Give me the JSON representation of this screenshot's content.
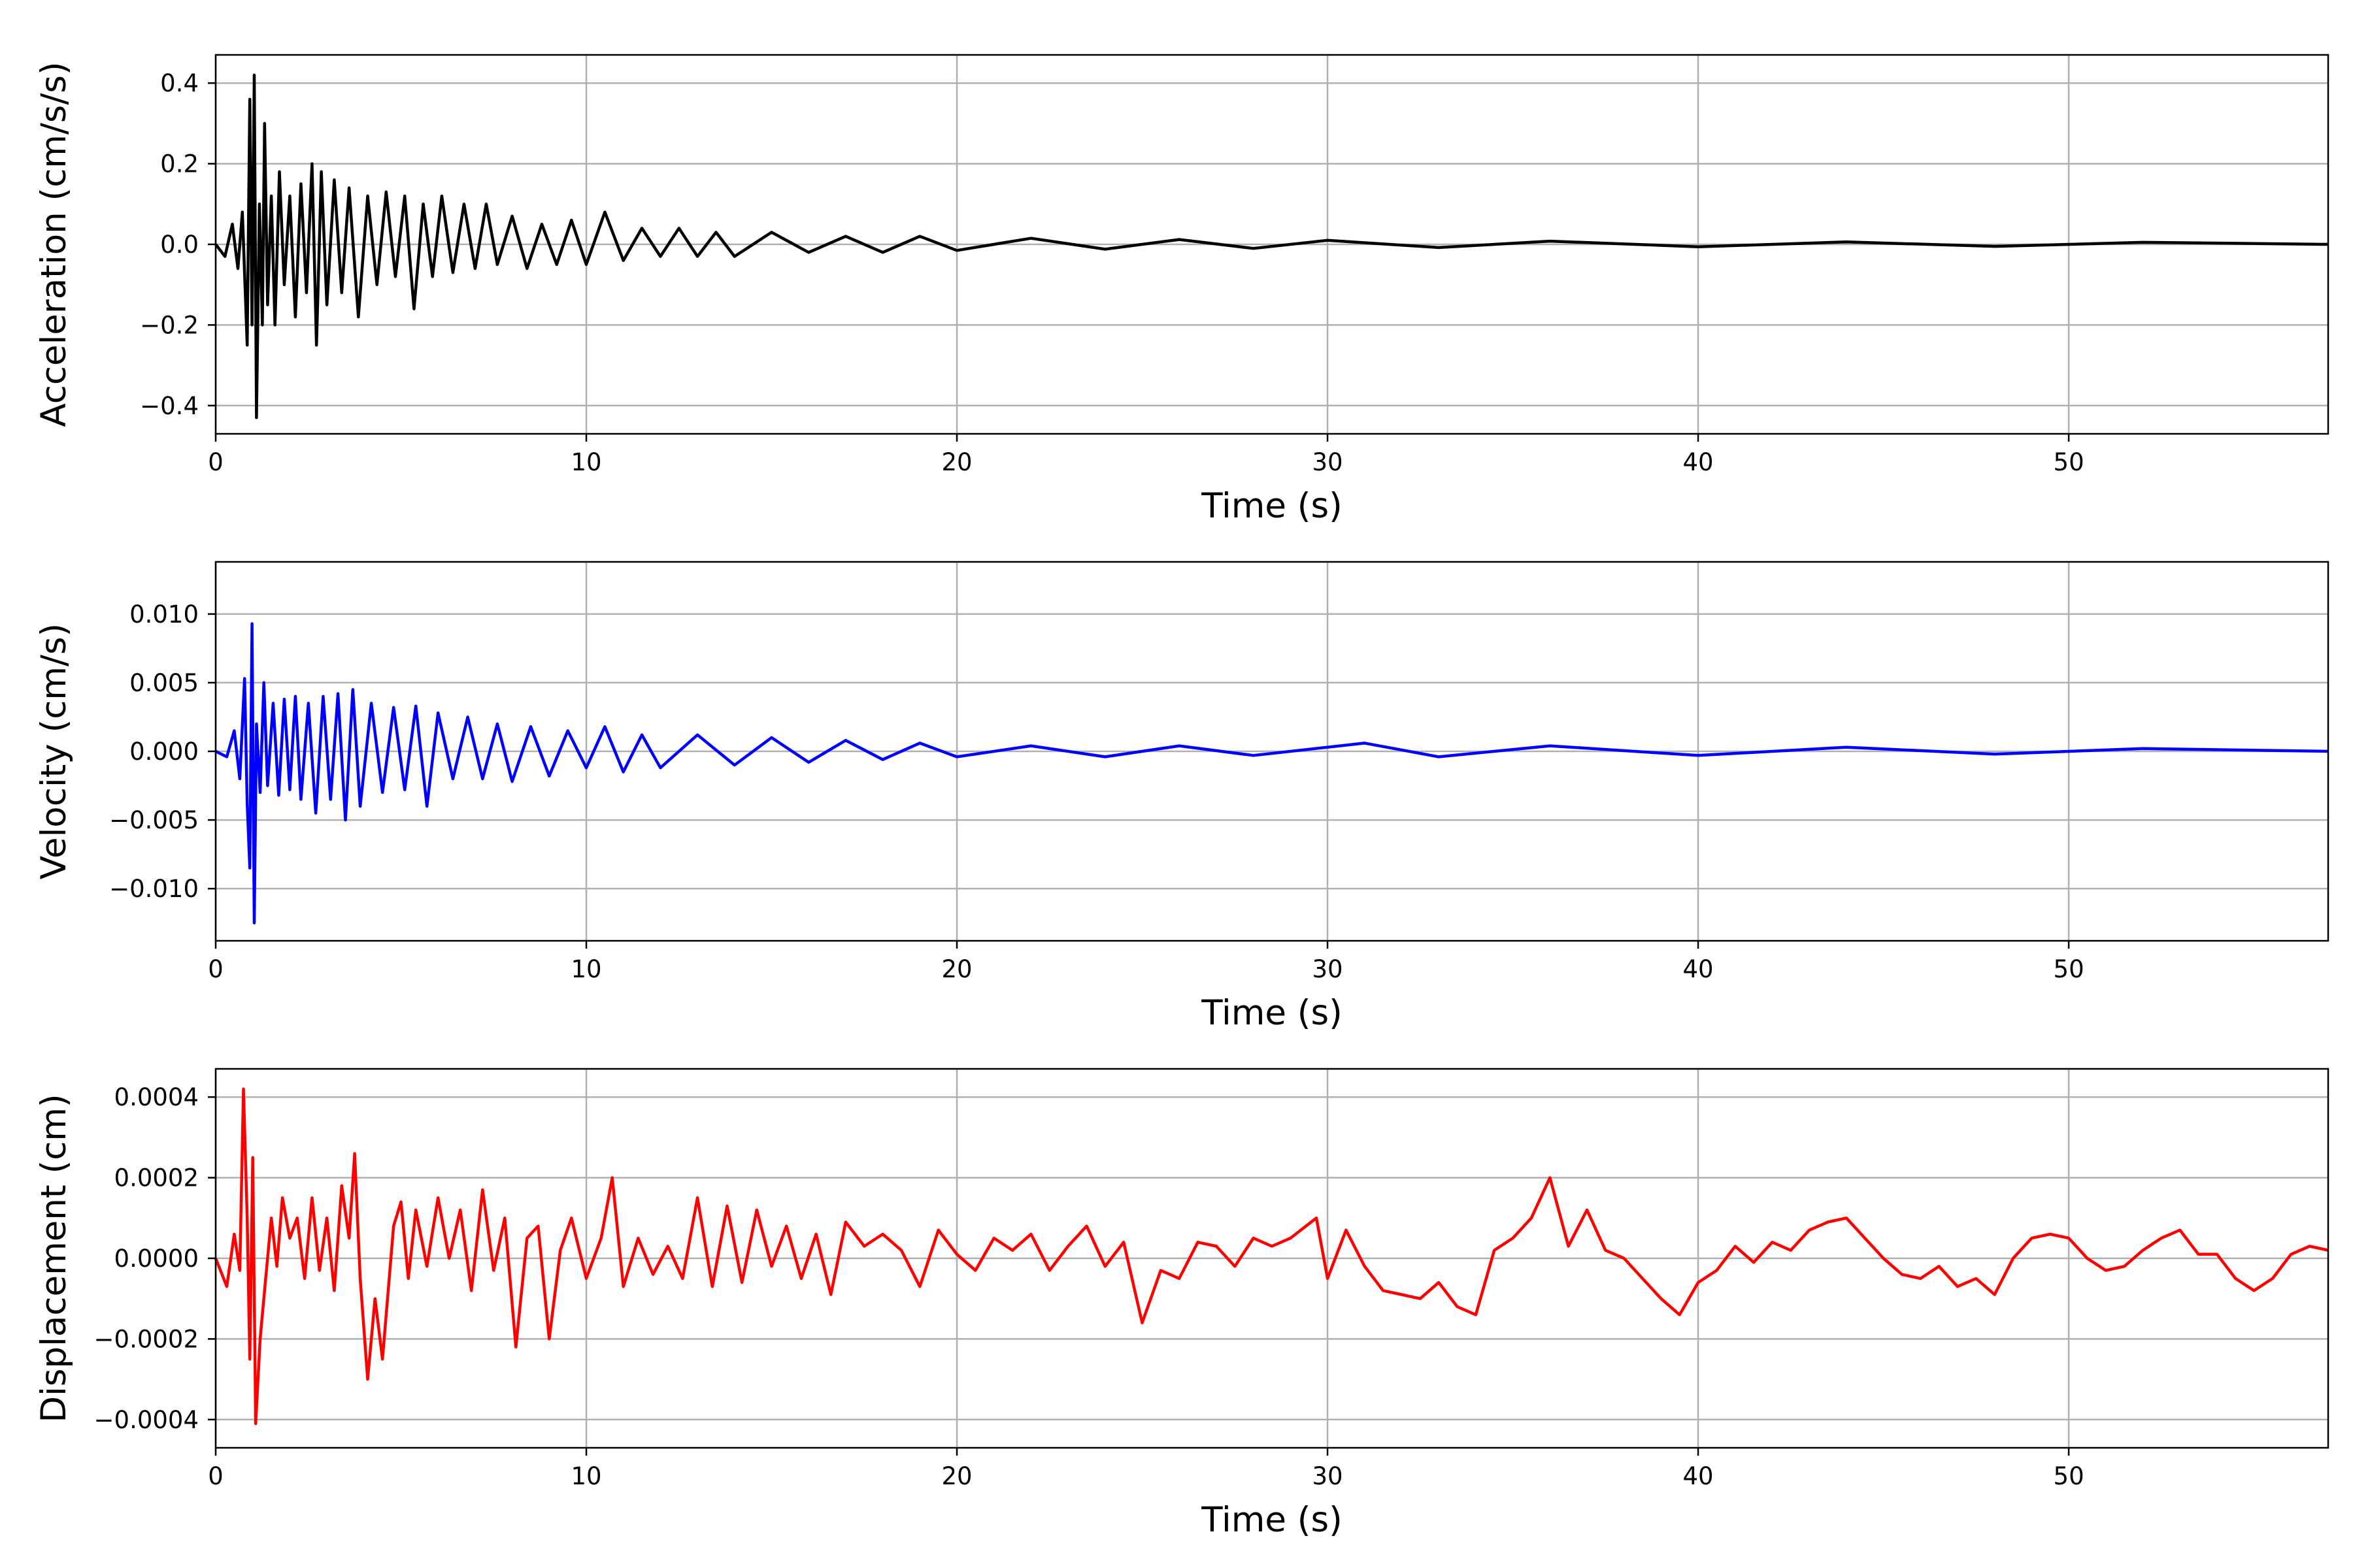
{
  "chart_data": [
    {
      "type": "line",
      "xlabel": "Time (s)",
      "ylabel": "Acceleration (cm/s/s)",
      "xlim": [
        0,
        57
      ],
      "ylim": [
        -0.47,
        0.47
      ],
      "xticks": [
        0,
        10,
        20,
        30,
        40,
        50
      ],
      "xtick_labels": [
        "0",
        "10",
        "20",
        "30",
        "40",
        "50"
      ],
      "yticks": [
        -0.4,
        -0.2,
        0.0,
        0.2,
        0.4
      ],
      "ytick_labels": [
        "−0.4",
        "−0.2",
        "0.0",
        "0.2",
        "0.4"
      ],
      "grid": true,
      "series": [
        {
          "color": "#000000",
          "x": [
            0,
            0.25,
            0.45,
            0.6,
            0.72,
            0.85,
            0.92,
            0.98,
            1.04,
            1.1,
            1.18,
            1.26,
            1.32,
            1.4,
            1.5,
            1.6,
            1.72,
            1.85,
            2.0,
            2.15,
            2.3,
            2.45,
            2.6,
            2.72,
            2.85,
            3.0,
            3.2,
            3.4,
            3.6,
            3.85,
            4.1,
            4.35,
            4.6,
            4.85,
            5.1,
            5.35,
            5.6,
            5.85,
            6.1,
            6.4,
            6.7,
            7.0,
            7.3,
            7.6,
            8.0,
            8.4,
            8.8,
            9.2,
            9.6,
            10.0,
            10.5,
            11.0,
            11.5,
            12.0,
            12.5,
            13.0,
            13.5,
            14.0,
            15.0,
            16.0,
            17.0,
            18.0,
            19.0,
            20.0,
            22.0,
            24.0,
            26.0,
            28.0,
            30.0,
            33.0,
            36.0,
            40.0,
            44.0,
            48.0,
            52.0,
            57.0
          ],
          "y": [
            0.0,
            -0.03,
            0.05,
            -0.06,
            0.08,
            -0.25,
            0.36,
            -0.2,
            0.42,
            -0.43,
            0.1,
            -0.2,
            0.3,
            -0.15,
            0.12,
            -0.2,
            0.18,
            -0.1,
            0.12,
            -0.18,
            0.15,
            -0.12,
            0.2,
            -0.25,
            0.18,
            -0.15,
            0.16,
            -0.12,
            0.14,
            -0.18,
            0.12,
            -0.1,
            0.13,
            -0.08,
            0.12,
            -0.16,
            0.1,
            -0.08,
            0.12,
            -0.07,
            0.1,
            -0.06,
            0.1,
            -0.05,
            0.07,
            -0.06,
            0.05,
            -0.05,
            0.06,
            -0.05,
            0.08,
            -0.04,
            0.04,
            -0.03,
            0.04,
            -0.03,
            0.03,
            -0.03,
            0.03,
            -0.02,
            0.02,
            -0.02,
            0.02,
            -0.015,
            0.015,
            -0.012,
            0.012,
            -0.01,
            0.01,
            -0.008,
            0.008,
            -0.006,
            0.006,
            -0.005,
            0.005,
            0.0
          ]
        }
      ]
    },
    {
      "type": "line",
      "xlabel": "Time (s)",
      "ylabel": "Velocity (cm/s)",
      "xlim": [
        0,
        57
      ],
      "ylim": [
        -0.0138,
        0.0138
      ],
      "xticks": [
        0,
        10,
        20,
        30,
        40,
        50
      ],
      "xtick_labels": [
        "0",
        "10",
        "20",
        "30",
        "40",
        "50"
      ],
      "yticks": [
        -0.01,
        -0.005,
        0.0,
        0.005,
        0.01
      ],
      "ytick_labels": [
        "−0.010",
        "−0.005",
        "0.000",
        "0.005",
        "0.010"
      ],
      "grid": true,
      "series": [
        {
          "color": "#0000ff",
          "x": [
            0,
            0.3,
            0.5,
            0.65,
            0.78,
            0.85,
            0.92,
            0.98,
            1.04,
            1.1,
            1.2,
            1.3,
            1.4,
            1.55,
            1.7,
            1.85,
            2.0,
            2.15,
            2.3,
            2.5,
            2.7,
            2.9,
            3.1,
            3.3,
            3.5,
            3.7,
            3.9,
            4.2,
            4.5,
            4.8,
            5.1,
            5.4,
            5.7,
            6.0,
            6.4,
            6.8,
            7.2,
            7.6,
            8.0,
            8.5,
            9.0,
            9.5,
            10.0,
            10.5,
            11.0,
            11.5,
            12.0,
            13.0,
            14.0,
            15.0,
            16.0,
            17.0,
            18.0,
            19.0,
            20.0,
            22.0,
            24.0,
            26.0,
            28.0,
            30.0,
            31.0,
            33.0,
            36.0,
            40.0,
            44.0,
            48.0,
            52.0,
            57.0
          ],
          "y": [
            0.0,
            -0.0004,
            0.0015,
            -0.002,
            0.0053,
            -0.0038,
            -0.0085,
            0.0093,
            -0.0125,
            0.002,
            -0.003,
            0.005,
            -0.0025,
            0.0035,
            -0.0032,
            0.0038,
            -0.0028,
            0.004,
            -0.0035,
            0.0035,
            -0.0045,
            0.004,
            -0.0035,
            0.0042,
            -0.005,
            0.0045,
            -0.004,
            0.0035,
            -0.003,
            0.0032,
            -0.0028,
            0.0033,
            -0.004,
            0.0028,
            -0.002,
            0.0025,
            -0.002,
            0.002,
            -0.0022,
            0.0018,
            -0.0018,
            0.0015,
            -0.0012,
            0.0018,
            -0.0015,
            0.0012,
            -0.0012,
            0.0012,
            -0.001,
            0.001,
            -0.0008,
            0.0008,
            -0.0006,
            0.0006,
            -0.0004,
            0.0004,
            -0.0004,
            0.0004,
            -0.0003,
            0.0003,
            0.0006,
            -0.0004,
            0.0004,
            -0.0003,
            0.0003,
            -0.0002,
            0.0002,
            0.0
          ]
        }
      ]
    },
    {
      "type": "line",
      "xlabel": "Time (s)",
      "ylabel": "Displacement (cm)",
      "xlim": [
        0,
        57
      ],
      "ylim": [
        -0.00047,
        0.00047
      ],
      "xticks": [
        0,
        10,
        20,
        30,
        40,
        50
      ],
      "xtick_labels": [
        "0",
        "10",
        "20",
        "30",
        "40",
        "50"
      ],
      "yticks": [
        -0.0004,
        -0.0002,
        0.0,
        0.0002,
        0.0004
      ],
      "ytick_labels": [
        "−0.0004",
        "−0.0002",
        "0.0000",
        "0.0002",
        "0.0004"
      ],
      "grid": true,
      "series": [
        {
          "color": "#ff0000",
          "x": [
            0,
            0.3,
            0.5,
            0.65,
            0.75,
            0.85,
            0.92,
            1.0,
            1.08,
            1.2,
            1.35,
            1.5,
            1.65,
            1.8,
            2.0,
            2.2,
            2.4,
            2.6,
            2.8,
            3.0,
            3.2,
            3.4,
            3.6,
            3.75,
            3.9,
            4.1,
            4.3,
            4.5,
            4.8,
            5.0,
            5.2,
            5.4,
            5.7,
            6.0,
            6.3,
            6.6,
            6.9,
            7.2,
            7.5,
            7.8,
            8.1,
            8.4,
            8.7,
            9.0,
            9.3,
            9.6,
            10.0,
            10.4,
            10.7,
            11.0,
            11.4,
            11.8,
            12.2,
            12.6,
            13.0,
            13.4,
            13.8,
            14.2,
            14.6,
            15.0,
            15.4,
            15.8,
            16.2,
            16.6,
            17.0,
            17.5,
            18.0,
            18.5,
            19.0,
            19.5,
            20.0,
            20.5,
            21.0,
            21.5,
            22.0,
            22.5,
            23.0,
            23.5,
            24.0,
            24.5,
            25.0,
            25.5,
            26.0,
            26.5,
            27.0,
            27.5,
            28.0,
            28.5,
            29.0,
            29.7,
            30.0,
            30.5,
            31.0,
            31.5,
            32.0,
            32.5,
            33.0,
            33.5,
            34.0,
            34.5,
            35.0,
            35.5,
            36.0,
            36.5,
            37.0,
            37.5,
            38.0,
            38.5,
            39.0,
            39.5,
            40.0,
            40.5,
            41.0,
            41.5,
            42.0,
            42.5,
            43.0,
            43.5,
            44.0,
            44.5,
            45.0,
            45.5,
            46.0,
            46.5,
            47.0,
            47.5,
            48.0,
            48.5,
            49.0,
            49.5,
            50.0,
            50.5,
            51.0,
            51.5,
            52.0,
            52.5,
            53.0,
            53.5,
            54.0,
            54.5,
            55.0,
            55.5,
            56.0,
            56.5,
            57.0
          ],
          "y": [
            0.0,
            -7e-05,
            6e-05,
            -3e-05,
            0.00042,
            0.0001,
            -0.00025,
            0.00025,
            -0.00041,
            -0.0002,
            -5e-05,
            0.0001,
            -2e-05,
            0.00015,
            5e-05,
            0.0001,
            -5e-05,
            0.00015,
            -3e-05,
            0.0001,
            -8e-05,
            0.00018,
            5e-05,
            0.00026,
            -5e-05,
            -0.0003,
            -0.0001,
            -0.00025,
            8e-05,
            0.00014,
            -5e-05,
            0.00012,
            -2e-05,
            0.00015,
            0.0,
            0.00012,
            -8e-05,
            0.00017,
            -3e-05,
            0.0001,
            -0.00022,
            5e-05,
            8e-05,
            -0.0002,
            2e-05,
            0.0001,
            -5e-05,
            5e-05,
            0.0002,
            -7e-05,
            5e-05,
            -4e-05,
            3e-05,
            -5e-05,
            0.00015,
            -7e-05,
            0.00013,
            -6e-05,
            0.00012,
            -2e-05,
            8e-05,
            -5e-05,
            6e-05,
            -9e-05,
            9e-05,
            3e-05,
            6e-05,
            2e-05,
            -7e-05,
            7e-05,
            1e-05,
            -3e-05,
            5e-05,
            2e-05,
            6e-05,
            -3e-05,
            3e-05,
            8e-05,
            -2e-05,
            4e-05,
            -0.00016,
            -3e-05,
            -5e-05,
            4e-05,
            3e-05,
            -2e-05,
            5e-05,
            3e-05,
            5e-05,
            0.0001,
            -5e-05,
            7e-05,
            -2e-05,
            -8e-05,
            -9e-05,
            -0.0001,
            -6e-05,
            -0.00012,
            -0.00014,
            2e-05,
            5e-05,
            0.0001,
            0.0002,
            3e-05,
            0.00012,
            2e-05,
            0.0,
            -5e-05,
            -0.0001,
            -0.00014,
            -6e-05,
            -3e-05,
            3e-05,
            -1e-05,
            4e-05,
            2e-05,
            7e-05,
            9e-05,
            0.0001,
            5e-05,
            0.0,
            -4e-05,
            -5e-05,
            -2e-05,
            -7e-05,
            -5e-05,
            -9e-05,
            0.0,
            5e-05,
            6e-05,
            5e-05,
            0.0,
            -3e-05,
            -2e-05,
            2e-05,
            5e-05,
            7e-05,
            1e-05,
            1e-05,
            -5e-05,
            -8e-05,
            -5e-05,
            1e-05,
            3e-05,
            2e-05
          ]
        }
      ]
    }
  ]
}
